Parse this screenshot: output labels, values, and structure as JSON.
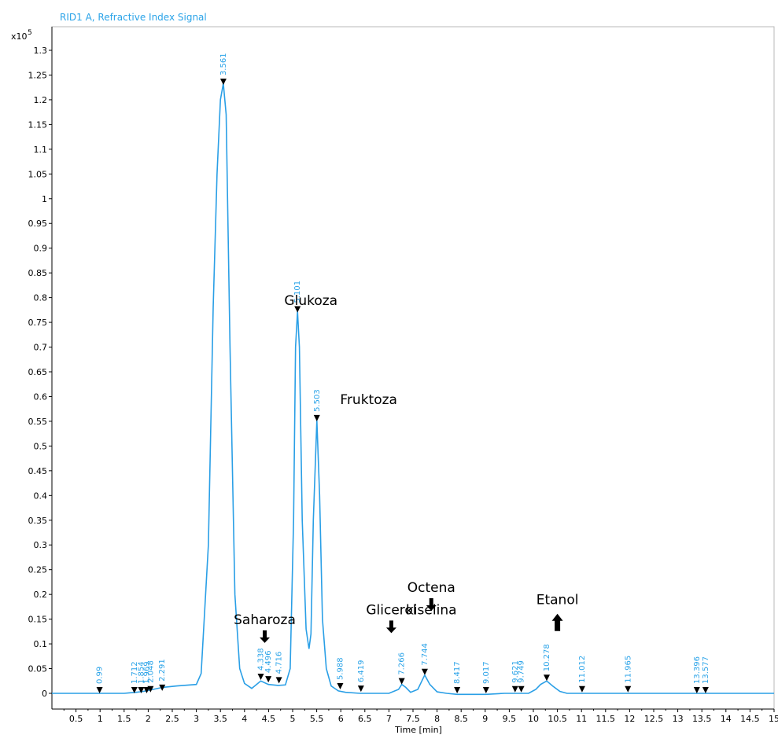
{
  "chart_data": {
    "type": "line",
    "title": "RID1 A, Refractive Index Signal",
    "xlabel": "Time [min]",
    "ylabel": "",
    "y_multiplier": "x10",
    "y_exponent": "5",
    "xlim": [
      0,
      15
    ],
    "ylim": [
      0,
      1.35
    ],
    "x_ticks": [
      "0.5",
      "1",
      "1.5",
      "2",
      "2.5",
      "3",
      "3.5",
      "4",
      "4.5",
      "5",
      "5.5",
      "6",
      "6.5",
      "7",
      "7.5",
      "8",
      "8.5",
      "9",
      "9.5",
      "10",
      "10.5",
      "11",
      "11.5",
      "12",
      "12.5",
      "13",
      "13.5",
      "14",
      "14.5",
      "15"
    ],
    "y_ticks": [
      "0",
      "0.05",
      "0.1",
      "0.15",
      "0.2",
      "0.25",
      "0.3",
      "0.35",
      "0.4",
      "0.45",
      "0.5",
      "0.55",
      "0.6",
      "0.65",
      "0.7",
      "0.75",
      "0.8",
      "0.85",
      "0.9",
      "0.95",
      "1",
      "1.05",
      "1.1",
      "1.15",
      "1.2",
      "1.25",
      "1.3"
    ],
    "color": "#2a9fe6",
    "grid": false,
    "peaks": [
      {
        "label": "0.99",
        "x": 0.99,
        "y": 0.0
      },
      {
        "label": "1.712",
        "x": 1.712,
        "y": 0.0
      },
      {
        "label": "1.854",
        "x": 1.854,
        "y": 0.0
      },
      {
        "label": "1.969",
        "x": 1.969,
        "y": 0.0
      },
      {
        "label": "2.048",
        "x": 2.048,
        "y": 0.002
      },
      {
        "label": "2.291",
        "x": 2.291,
        "y": 0.005
      },
      {
        "label": "3.561",
        "x": 3.561,
        "y": 1.23
      },
      {
        "label": "4.338",
        "x": 4.338,
        "y": 0.027
      },
      {
        "label": "4.496",
        "x": 4.496,
        "y": 0.022
      },
      {
        "label": "4.716",
        "x": 4.716,
        "y": 0.02
      },
      {
        "label": "5.101",
        "x": 5.101,
        "y": 0.77
      },
      {
        "label": "5.503",
        "x": 5.503,
        "y": 0.55
      },
      {
        "label": "5.988",
        "x": 5.988,
        "y": 0.008
      },
      {
        "label": "6.419",
        "x": 6.419,
        "y": 0.003
      },
      {
        "label": "7.266",
        "x": 7.266,
        "y": 0.018
      },
      {
        "label": "7.744",
        "x": 7.744,
        "y": 0.037
      },
      {
        "label": "8.417",
        "x": 8.417,
        "y": 0.0
      },
      {
        "label": "9.017",
        "x": 9.017,
        "y": 0.0
      },
      {
        "label": "9.621",
        "x": 9.621,
        "y": 0.002
      },
      {
        "label": "9.749",
        "x": 9.749,
        "y": 0.002
      },
      {
        "label": "10.278",
        "x": 10.278,
        "y": 0.025
      },
      {
        "label": "11.012",
        "x": 11.012,
        "y": 0.002
      },
      {
        "label": "11.965",
        "x": 11.965,
        "y": 0.002
      },
      {
        "label": "13.396",
        "x": 13.396,
        "y": 0.0
      },
      {
        "label": "13.577",
        "x": 13.577,
        "y": 0.0
      }
    ],
    "series": [
      {
        "x": [
          0.0,
          1.0,
          1.5,
          1.6,
          1.75,
          1.9,
          2.0,
          2.1,
          2.3,
          2.6,
          3.0,
          3.1,
          3.25,
          3.35,
          3.43,
          3.5,
          3.561,
          3.62,
          3.7,
          3.8,
          3.9,
          4.0,
          4.15,
          4.338,
          4.496,
          4.7,
          4.85,
          4.95,
          5.02,
          5.06,
          5.101,
          5.14,
          5.2,
          5.28,
          5.34,
          5.38,
          5.43,
          5.503,
          5.56,
          5.62,
          5.7,
          5.8,
          5.95,
          6.1,
          6.4,
          7.0,
          7.2,
          7.266,
          7.35,
          7.45,
          7.6,
          7.744,
          7.85,
          8.0,
          8.2,
          8.417,
          8.7,
          9.017,
          9.4,
          9.6,
          9.749,
          9.9,
          10.05,
          10.15,
          10.278,
          10.4,
          10.55,
          10.7,
          11.0,
          12.0,
          13.0,
          14.0,
          15.0
        ],
        "y": [
          0.0,
          0.0,
          0.0,
          0.001,
          0.002,
          0.004,
          0.006,
          0.008,
          0.012,
          0.015,
          0.018,
          0.04,
          0.3,
          0.78,
          1.05,
          1.2,
          1.233,
          1.17,
          0.7,
          0.2,
          0.05,
          0.02,
          0.01,
          0.025,
          0.018,
          0.016,
          0.017,
          0.05,
          0.35,
          0.7,
          0.772,
          0.7,
          0.35,
          0.13,
          0.09,
          0.12,
          0.35,
          0.552,
          0.4,
          0.15,
          0.05,
          0.015,
          0.005,
          0.002,
          0.0,
          0.0,
          0.008,
          0.018,
          0.012,
          0.002,
          0.008,
          0.037,
          0.018,
          0.003,
          0.0,
          -0.002,
          -0.002,
          -0.002,
          0.0,
          0.0,
          0.0,
          0.0,
          0.008,
          0.018,
          0.025,
          0.015,
          0.004,
          0.0,
          0.0,
          0.0,
          0.0,
          0.0,
          0.0
        ]
      }
    ],
    "annotations": [
      {
        "text": "Glukoza",
        "x": 5.38,
        "y": 0.785,
        "arrow": "none"
      },
      {
        "text": "Fruktoza",
        "x": 6.58,
        "y": 0.585,
        "arrow": "none"
      },
      {
        "text": "Saharoza",
        "x": 4.42,
        "y": 0.14,
        "arrow": "down"
      },
      {
        "text": "Glicerol",
        "x": 7.05,
        "y": 0.16,
        "arrow": "down"
      },
      {
        "text": "Octena",
        "x": 7.88,
        "y": 0.205,
        "arrow": "down"
      },
      {
        "text": "kiselina",
        "x": 7.88,
        "y": 0.16,
        "arrow": "none"
      },
      {
        "text": "Etanol",
        "x": 10.5,
        "y": 0.18,
        "arrow": "up"
      }
    ]
  }
}
